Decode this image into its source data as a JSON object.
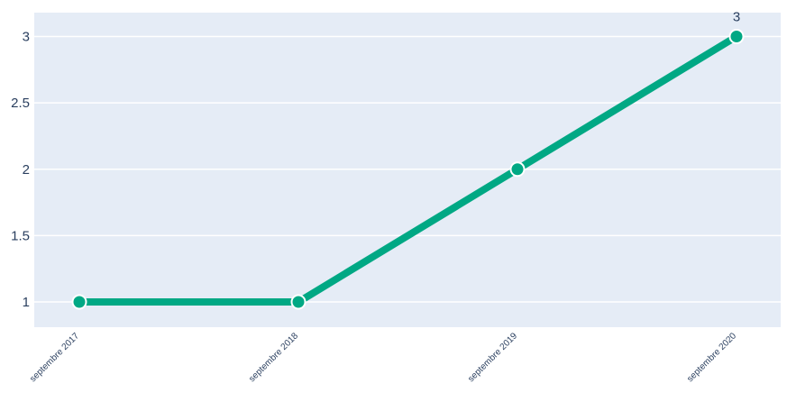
{
  "chart_data": {
    "type": "line",
    "title": "",
    "xlabel": "",
    "ylabel": "",
    "categories": [
      "septembre 2017",
      "septembre 2018",
      "septembre 2019",
      "septembre 2020"
    ],
    "series": [
      {
        "values": [
          1,
          1,
          2,
          3
        ],
        "color": "#00a884"
      }
    ],
    "y_ticks": [
      "1",
      "1.5",
      "2",
      "2.5",
      "3"
    ],
    "y_tick_values": [
      1,
      1.5,
      2,
      2.5,
      3
    ],
    "data_labels": [
      {
        "index": 3,
        "text": "3"
      }
    ],
    "ylim": [
      0.81,
      3.18
    ],
    "grid": true,
    "legend": "none",
    "colors": {
      "plot_background": "#e5ecf6",
      "gridline": "#ffffff",
      "text": "#2a3f5f",
      "marker_outline": "#ffffff"
    }
  }
}
